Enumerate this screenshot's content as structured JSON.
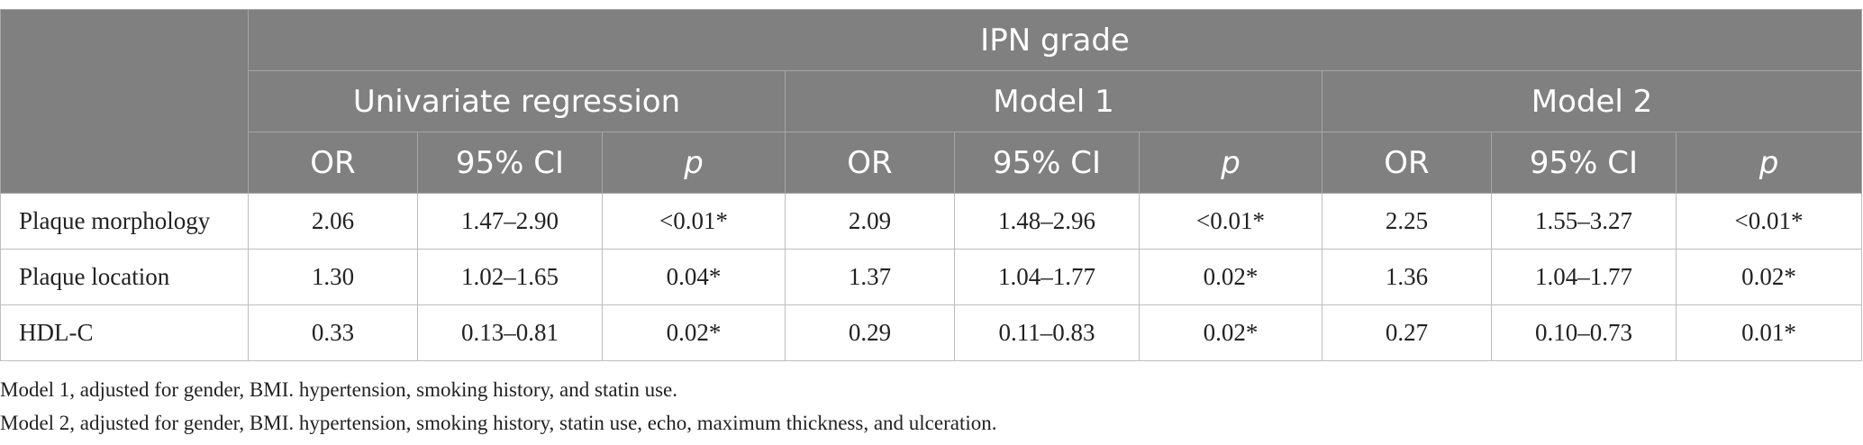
{
  "header": {
    "top": "IPN grade",
    "groups": [
      "Univariate regression",
      "Model 1",
      "Model 2"
    ],
    "sub": [
      "OR",
      "95% CI",
      "p"
    ]
  },
  "rows": [
    {
      "label": "Plaque morphology",
      "values": [
        "2.06",
        "1.47–2.90",
        "<0.01*",
        "2.09",
        "1.48–2.96",
        "<0.01*",
        "2.25",
        "1.55–3.27",
        "<0.01*"
      ]
    },
    {
      "label": "Plaque location",
      "values": [
        "1.30",
        "1.02–1.65",
        "0.04*",
        "1.37",
        "1.04–1.77",
        "0.02*",
        "1.36",
        "1.04–1.77",
        "0.02*"
      ]
    },
    {
      "label": "HDL-C",
      "values": [
        "0.33",
        "0.13–0.81",
        "0.02*",
        "0.29",
        "0.11–0.83",
        "0.02*",
        "0.27",
        "0.10–0.73",
        "0.01*"
      ]
    }
  ],
  "notes": [
    "Model 1, adjusted for gender, BMI. hypertension, smoking history, and statin use.",
    "Model 2, adjusted for gender, BMI. hypertension, smoking history, statin use, echo, maximum thickness, and ulceration."
  ]
}
